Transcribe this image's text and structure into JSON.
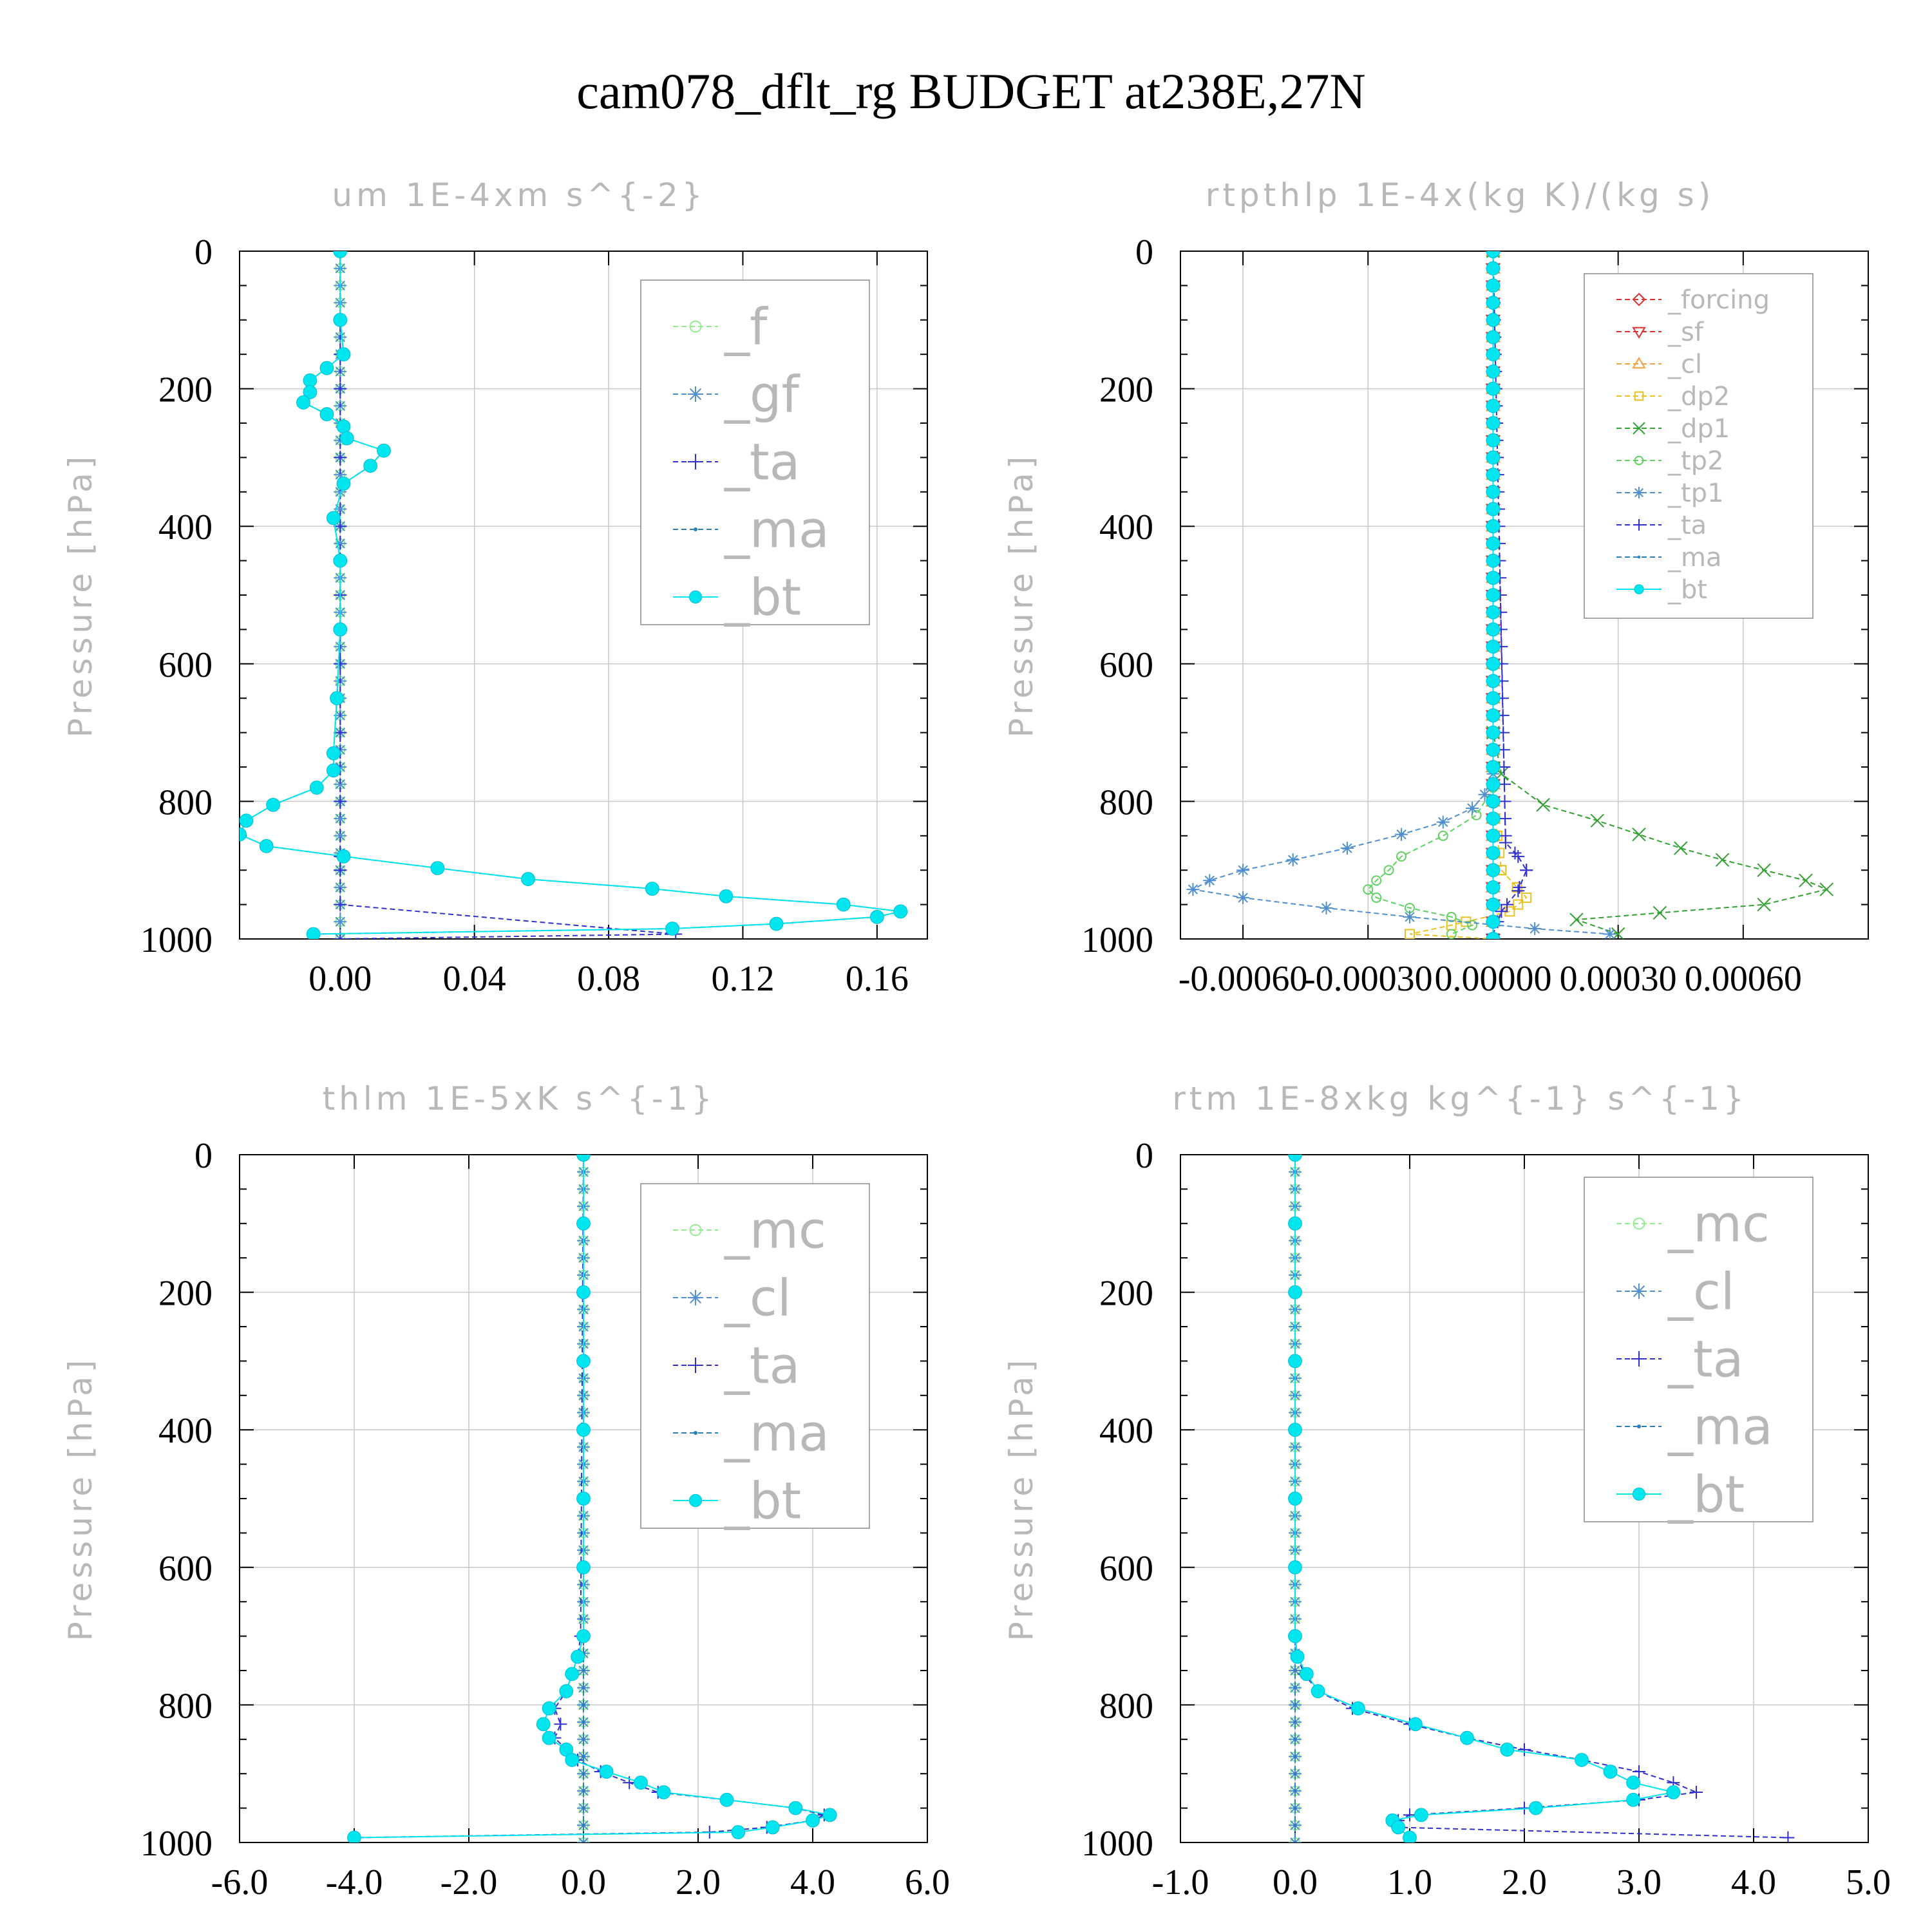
{
  "title": "cam078_dflt_rg  BUDGET at238E,27N",
  "chart_data": [
    {
      "type": "line",
      "title": "um  1E-4xm s^{-2}",
      "ylabel": "Pressure [hPa]",
      "ylim": [
        1000,
        0
      ],
      "xlim": [
        -0.03,
        0.175
      ],
      "xticks": [
        0.0,
        0.04,
        0.08,
        0.12,
        0.16
      ],
      "xtick_labels": [
        "0.00",
        "0.04",
        "0.08",
        "0.12",
        "0.16"
      ],
      "yticks": [
        0,
        200,
        400,
        600,
        800,
        1000
      ],
      "ytick_labels": [
        "0",
        "200",
        "400",
        "600",
        "800",
        "1000"
      ],
      "legend_position": "top-right",
      "series": [
        {
          "name": "_f",
          "color": "#90ee90",
          "marker": "circle-open",
          "y": [
            0,
            100,
            200,
            300,
            400,
            500,
            600,
            700,
            800,
            900,
            1000
          ],
          "x": [
            0,
            0,
            0,
            0,
            0,
            0,
            0,
            0,
            0,
            0,
            0
          ]
        },
        {
          "name": "_gf",
          "color": "#4f8fd0",
          "marker": "star",
          "y": [
            0,
            100,
            200,
            300,
            400,
            500,
            600,
            700,
            800,
            900,
            1000
          ],
          "x": [
            0,
            0,
            0,
            0,
            0,
            0,
            0,
            0,
            0,
            0,
            0
          ]
        },
        {
          "name": "_ta",
          "color": "#3030d0",
          "marker": "plus",
          "y": [
            0,
            100,
            150,
            200,
            300,
            400,
            500,
            600,
            700,
            800,
            880,
            900,
            950,
            993,
            1000
          ],
          "x": [
            0,
            0,
            0,
            0,
            0,
            0,
            0,
            0,
            0,
            0,
            0,
            0,
            0,
            0.1,
            0
          ]
        },
        {
          "name": "_ma",
          "color": "#2c7fb8",
          "marker": "dot",
          "y": [
            0,
            100,
            150,
            170,
            188,
            205,
            220,
            237,
            255,
            272,
            290,
            312,
            338,
            388,
            450,
            550,
            650,
            730,
            755,
            780,
            805,
            828,
            848,
            865,
            880,
            897,
            913,
            927,
            938,
            950,
            960,
            968,
            978,
            985,
            993
          ],
          "x": [
            0,
            0,
            0.001,
            -0.004,
            -0.009,
            -0.009,
            -0.011,
            -0.004,
            0.001,
            0.002,
            0.013,
            0.009,
            0.001,
            -0.002,
            0,
            0,
            -0.001,
            -0.002,
            -0.002,
            -0.007,
            -0.02,
            -0.028,
            -0.03,
            -0.022,
            0.001,
            0.029,
            0.056,
            0.093,
            0.115,
            0.15,
            0.167,
            0.16,
            0.13,
            0.099,
            -0.008
          ]
        },
        {
          "name": "_bt",
          "color": "#00e5ee",
          "marker": "dot-filled",
          "y": [
            0,
            100,
            150,
            170,
            188,
            205,
            220,
            237,
            255,
            272,
            290,
            312,
            338,
            388,
            450,
            550,
            650,
            730,
            755,
            780,
            805,
            828,
            848,
            865,
            880,
            897,
            913,
            927,
            938,
            950,
            960,
            968,
            978,
            985,
            993
          ],
          "x": [
            0,
            0,
            0.001,
            -0.004,
            -0.009,
            -0.009,
            -0.011,
            -0.004,
            0.001,
            0.002,
            0.013,
            0.009,
            0.001,
            -0.002,
            0,
            0,
            -0.001,
            -0.002,
            -0.002,
            -0.007,
            -0.02,
            -0.028,
            -0.03,
            -0.022,
            0.001,
            0.029,
            0.056,
            0.093,
            0.115,
            0.15,
            0.167,
            0.16,
            0.13,
            0.099,
            -0.008
          ]
        }
      ]
    },
    {
      "type": "line",
      "title": "rtpthlp  1E-4x(kg K)/(kg s)",
      "ylabel": "Pressure [hPa]",
      "ylim": [
        1000,
        0
      ],
      "xlim": [
        -0.00075,
        0.0009
      ],
      "xticks": [
        -0.0006,
        -0.0003,
        0.0,
        0.0003,
        0.0006
      ],
      "xtick_labels": [
        "-0.00060",
        "-0.00030",
        "0.00000",
        "0.00030",
        "0.00060"
      ],
      "yticks": [
        0,
        200,
        400,
        600,
        800,
        1000
      ],
      "ytick_labels": [
        "0",
        "200",
        "400",
        "600",
        "800",
        "1000"
      ],
      "legend_position": "top-right",
      "series": [
        {
          "name": "_forcing",
          "color": "#e03030",
          "marker": "diamond",
          "y": [
            0,
            200,
            400,
            600,
            800,
            1000
          ],
          "x": [
            0,
            0,
            0,
            0,
            0,
            0
          ]
        },
        {
          "name": "_sf",
          "color": "#e03030",
          "marker": "triangle-down",
          "y": [
            0,
            200,
            400,
            600,
            800,
            1000
          ],
          "x": [
            0,
            0,
            0,
            0,
            0,
            0
          ]
        },
        {
          "name": "_cl",
          "color": "#f0a040",
          "marker": "triangle-up",
          "y": [
            0,
            200,
            400,
            600,
            800,
            1000
          ],
          "x": [
            0,
            0,
            0,
            0,
            0,
            0
          ]
        },
        {
          "name": "_dp2",
          "color": "#e8c020",
          "marker": "square",
          "y": [
            0,
            800,
            900,
            940,
            960,
            980,
            993,
            1000
          ],
          "x": [
            0,
            0,
            2e-05,
            8e-05,
            4e-05,
            -0.0001,
            -0.0002,
            0
          ]
        },
        {
          "name": "_dp1",
          "color": "#30a030",
          "marker": "cross",
          "y": [
            0,
            700,
            760,
            805,
            828,
            848,
            868,
            885,
            900,
            915,
            928,
            950,
            962,
            972,
            993
          ],
          "x": [
            0,
            0,
            2e-05,
            0.00012,
            0.00025,
            0.00035,
            0.00045,
            0.00055,
            0.00065,
            0.00075,
            0.0008,
            0.00065,
            0.0004,
            0.0002,
            0.0003
          ]
        },
        {
          "name": "_tp2",
          "color": "#60d060",
          "marker": "circle-open",
          "y": [
            0,
            780,
            820,
            850,
            880,
            900,
            915,
            928,
            940,
            955,
            968,
            980,
            993
          ],
          "x": [
            0,
            0,
            -4e-05,
            -0.00012,
            -0.00022,
            -0.00025,
            -0.00028,
            -0.0003,
            -0.00028,
            -0.0002,
            -0.0001,
            -5e-05,
            -0.0001
          ]
        },
        {
          "name": "_tp1",
          "color": "#4f8fd0",
          "marker": "star",
          "y": [
            0,
            760,
            790,
            810,
            830,
            848,
            868,
            885,
            900,
            915,
            928,
            940,
            955,
            968,
            985,
            993
          ],
          "x": [
            0,
            0,
            -2e-05,
            -5e-05,
            -0.00012,
            -0.00022,
            -0.00035,
            -0.00048,
            -0.0006,
            -0.00068,
            -0.00072,
            -0.0006,
            -0.0004,
            -0.0002,
            0.0001,
            0.00028
          ]
        },
        {
          "name": "_ta",
          "color": "#3030d0",
          "marker": "plus",
          "y": [
            0,
            860,
            880,
            900,
            930,
            960,
            993
          ],
          "x": [
            0,
            3e-05,
            6e-05,
            8e-05,
            6e-05,
            2e-05,
            0
          ]
        },
        {
          "name": "_ma",
          "color": "#2c7fb8",
          "marker": "dot",
          "y": [
            0,
            200,
            400,
            600,
            800,
            1000
          ],
          "x": [
            0,
            0,
            0,
            0,
            0,
            0
          ]
        },
        {
          "name": "_bt",
          "color": "#00e5ee",
          "marker": "dot-filled",
          "y": [
            0,
            200,
            400,
            600,
            800,
            1000
          ],
          "x": [
            0,
            0,
            0,
            0,
            0,
            0
          ]
        }
      ]
    },
    {
      "type": "line",
      "title": "thlm  1E-5xK s^{-1}",
      "ylabel": "Pressure [hPa]",
      "ylim": [
        1000,
        0
      ],
      "xlim": [
        -6.0,
        6.0
      ],
      "xticks": [
        -6.0,
        -4.0,
        -2.0,
        0.0,
        2.0,
        4.0,
        6.0
      ],
      "xtick_labels": [
        "-6.0",
        "-4.0",
        "-2.0",
        "0.0",
        "2.0",
        "4.0",
        "6.0"
      ],
      "yticks": [
        0,
        200,
        400,
        600,
        800,
        1000
      ],
      "ytick_labels": [
        "0",
        "200",
        "400",
        "600",
        "800",
        "1000"
      ],
      "legend_position": "top-right",
      "series": [
        {
          "name": "_mc",
          "color": "#90ee90",
          "marker": "circle-open",
          "y": [
            0,
            200,
            400,
            600,
            800,
            1000
          ],
          "x": [
            0,
            0,
            0,
            0,
            0,
            0
          ]
        },
        {
          "name": "_cl",
          "color": "#4f8fd0",
          "marker": "star",
          "y": [
            0,
            200,
            400,
            600,
            800,
            1000
          ],
          "x": [
            0,
            0,
            0,
            0,
            0,
            0
          ]
        },
        {
          "name": "_ta",
          "color": "#3030d0",
          "marker": "plus",
          "y": [
            0,
            700,
            730,
            755,
            780,
            805,
            828,
            848,
            865,
            880,
            897,
            913,
            927,
            938,
            950,
            960,
            968,
            978,
            985,
            993
          ],
          "x": [
            0,
            -0.05,
            -0.1,
            -0.2,
            -0.3,
            -0.5,
            -0.4,
            -0.5,
            -0.3,
            -0.1,
            0.3,
            0.8,
            1.3,
            2.5,
            3.7,
            4.2,
            4.0,
            3.2,
            2.2,
            -4.0
          ]
        },
        {
          "name": "_ma",
          "color": "#2c7fb8",
          "marker": "dot",
          "y": [
            0,
            200,
            400,
            600,
            800,
            1000
          ],
          "x": [
            0,
            0,
            0,
            0,
            0,
            0
          ]
        },
        {
          "name": "_bt",
          "color": "#00e5ee",
          "marker": "dot-filled",
          "y": [
            0,
            100,
            200,
            300,
            400,
            500,
            600,
            700,
            730,
            755,
            780,
            805,
            828,
            848,
            865,
            880,
            897,
            913,
            927,
            938,
            950,
            960,
            968,
            978,
            985,
            993
          ],
          "x": [
            0,
            0,
            0,
            0,
            0,
            0,
            0,
            0,
            -0.1,
            -0.2,
            -0.3,
            -0.6,
            -0.7,
            -0.6,
            -0.3,
            -0.2,
            0.4,
            1.0,
            1.4,
            2.5,
            3.7,
            4.3,
            4.0,
            3.3,
            2.7,
            -4.0
          ]
        }
      ]
    },
    {
      "type": "line",
      "title": "rtm  1E-8xkg kg^{-1} s^{-1}",
      "ylabel": "Pressure [hPa]",
      "ylim": [
        1000,
        0
      ],
      "xlim": [
        -1.0,
        5.0
      ],
      "xticks": [
        -1.0,
        0.0,
        1.0,
        2.0,
        3.0,
        4.0,
        5.0
      ],
      "xtick_labels": [
        "-1.0",
        "0.0",
        "1.0",
        "2.0",
        "3.0",
        "4.0",
        "5.0"
      ],
      "yticks": [
        0,
        200,
        400,
        600,
        800,
        1000
      ],
      "ytick_labels": [
        "0",
        "200",
        "400",
        "600",
        "800",
        "1000"
      ],
      "legend_position": "top-right",
      "series": [
        {
          "name": "_mc",
          "color": "#90ee90",
          "marker": "circle-open",
          "y": [
            0,
            200,
            400,
            600,
            800,
            1000
          ],
          "x": [
            0,
            0,
            0,
            0,
            0,
            0
          ]
        },
        {
          "name": "_cl",
          "color": "#4f8fd0",
          "marker": "star",
          "y": [
            0,
            200,
            400,
            600,
            800,
            1000
          ],
          "x": [
            0,
            0,
            0,
            0,
            0,
            0
          ]
        },
        {
          "name": "_ta",
          "color": "#3030d0",
          "marker": "plus",
          "y": [
            0,
            700,
            730,
            755,
            780,
            805,
            828,
            848,
            865,
            880,
            897,
            913,
            927,
            938,
            950,
            960,
            968,
            978,
            993
          ],
          "x": [
            0,
            0,
            0.02,
            0.08,
            0.2,
            0.5,
            1.0,
            1.5,
            2.0,
            2.5,
            3.0,
            3.3,
            3.5,
            3.0,
            2.0,
            1.0,
            0.9,
            0.9,
            4.3
          ]
        },
        {
          "name": "_ma",
          "color": "#2c7fb8",
          "marker": "dot",
          "y": [
            0,
            200,
            400,
            600,
            800,
            1000
          ],
          "x": [
            0,
            0,
            0,
            0,
            0,
            0
          ]
        },
        {
          "name": "_bt",
          "color": "#00e5ee",
          "marker": "dot-filled",
          "y": [
            0,
            100,
            200,
            300,
            400,
            500,
            600,
            700,
            730,
            755,
            780,
            805,
            828,
            848,
            865,
            880,
            897,
            913,
            927,
            938,
            950,
            960,
            968,
            978,
            993
          ],
          "x": [
            0,
            0,
            0,
            0,
            0,
            0,
            0,
            0,
            0.02,
            0.1,
            0.2,
            0.55,
            1.05,
            1.5,
            1.85,
            2.5,
            2.75,
            2.95,
            3.3,
            2.95,
            2.1,
            1.1,
            0.85,
            0.9,
            1.0
          ]
        }
      ]
    }
  ]
}
